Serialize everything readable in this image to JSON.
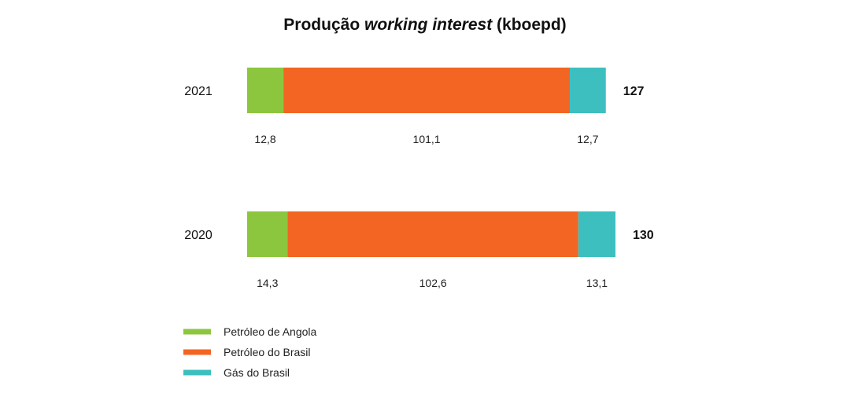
{
  "chart_data": {
    "type": "bar",
    "orientation": "horizontal",
    "stacked": true,
    "title": {
      "main": "Produção ",
      "emphasis": "working interest",
      "suffix": " (kboepd)"
    },
    "categories": [
      "2021",
      "2020"
    ],
    "totals": [
      "127",
      "130"
    ],
    "series": [
      {
        "name": "Petróleo de Angola",
        "color": "#8cc63f",
        "values": [
          12.8,
          14.3
        ],
        "value_labels": [
          "12,8",
          "14,3"
        ]
      },
      {
        "name": "Petróleo do Brasil",
        "color": "#f26522",
        "values": [
          101.1,
          102.6
        ],
        "value_labels": [
          "101,1",
          "102,6"
        ]
      },
      {
        "name": "Gás do Brasil",
        "color": "#3dbfc0",
        "values": [
          12.7,
          13.1
        ],
        "value_labels": [
          "12,7",
          "13,1"
        ]
      }
    ],
    "legend_position": "bottom-left",
    "grid": false
  }
}
